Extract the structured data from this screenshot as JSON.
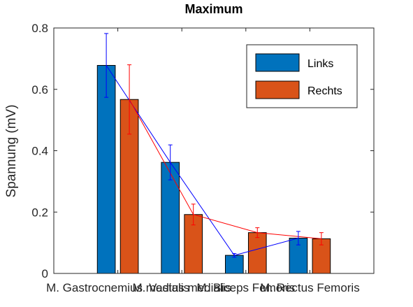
{
  "chart_data": {
    "type": "bar",
    "title": "Maximum",
    "xlabel": "",
    "ylabel": "Spannung (mV)",
    "ylim": [
      0,
      0.8
    ],
    "yticks": [
      "0",
      "0.2",
      "0.4",
      "0.6",
      "0.8"
    ],
    "categories": [
      "M. Gastrocnemius medialis",
      "Vastus medialis",
      "M. Biceps Femoris",
      "M. Rectus Femoris"
    ],
    "category_labels_rendered": [
      "M. Gastrocnemius medialis",
      "M. Vastus medialis",
      "M. Biceps Femoris",
      "M. Rectus Femoris"
    ],
    "series": [
      {
        "name": "Links",
        "color": "#0072BD",
        "line_color": "#0000FF",
        "values": [
          0.678,
          0.362,
          0.059,
          0.115
        ],
        "error": [
          0.104,
          0.057,
          0.006,
          0.022
        ]
      },
      {
        "name": "Rechts",
        "color": "#D95319",
        "line_color": "#FF0000",
        "values": [
          0.567,
          0.192,
          0.133,
          0.113
        ],
        "error": [
          0.113,
          0.034,
          0.016,
          0.02
        ]
      }
    ],
    "grid": false,
    "legend_position": "top-right"
  }
}
